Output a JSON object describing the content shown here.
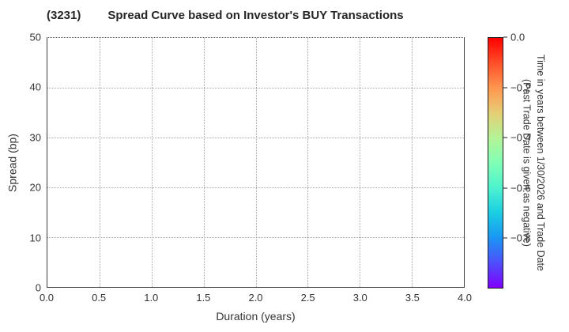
{
  "figure": {
    "title_left": "(3231)",
    "title_main": "Spread Curve based on Investor's BUY Transactions"
  },
  "chart_data": {
    "type": "scatter",
    "title": "(3231)  Spread Curve based on Investor's BUY Transactions",
    "xlabel": "Duration (years)",
    "ylabel": "Spread (bp)",
    "xlim": [
      0.0,
      4.0
    ],
    "ylim": [
      0,
      50
    ],
    "x_tick_values": [
      0.0,
      0.5,
      1.0,
      1.5,
      2.0,
      2.5,
      3.0,
      3.5,
      4.0
    ],
    "x_tick_labels": [
      "0.0",
      "0.5",
      "1.0",
      "1.5",
      "2.0",
      "2.5",
      "3.0",
      "3.5",
      "4.0"
    ],
    "y_tick_values": [
      0,
      10,
      20,
      30,
      40,
      50
    ],
    "y_tick_labels": [
      "0",
      "10",
      "20",
      "30",
      "40",
      "50"
    ],
    "grid": "dotted",
    "series": [],
    "points_plotted": 0,
    "colorbar": {
      "label_line1": "Time in years between 1/30/2026 and Trade Date",
      "label_line2": "(Past Trade Date is given as negative)",
      "range": [
        0.0,
        -1.0
      ],
      "tick_values": [
        0.0,
        -0.2,
        -0.4,
        -0.6,
        -0.8
      ],
      "tick_labels": [
        "0.0",
        "−0.2",
        "−0.4",
        "−0.6",
        "−0.8"
      ],
      "colormap": "rainbow",
      "gradient_stops": [
        {
          "pos": 0,
          "color": "#ff0000"
        },
        {
          "pos": 10,
          "color": "#ff4f28"
        },
        {
          "pos": 20,
          "color": "#ff964f"
        },
        {
          "pos": 30,
          "color": "#e6ce74"
        },
        {
          "pos": 40,
          "color": "#b3f396"
        },
        {
          "pos": 50,
          "color": "#80ffb4"
        },
        {
          "pos": 60,
          "color": "#4df3ce"
        },
        {
          "pos": 70,
          "color": "#1acee3"
        },
        {
          "pos": 80,
          "color": "#1a96f3"
        },
        {
          "pos": 90,
          "color": "#4d4ffc"
        },
        {
          "pos": 100,
          "color": "#8000ff"
        }
      ]
    }
  }
}
